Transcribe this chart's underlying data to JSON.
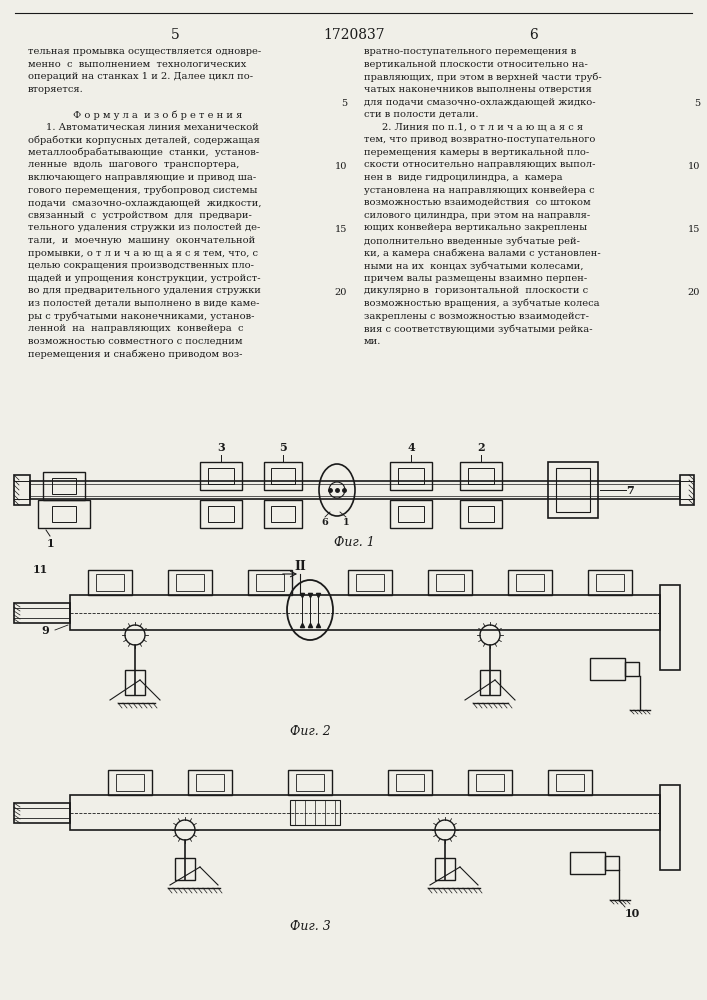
{
  "bg": "#f0efe8",
  "lc": "#1a1a1a",
  "tc": "#1a1a1a",
  "patent_number": "1720837",
  "page_left": "5",
  "page_right": "6",
  "left_col_lines": [
    "тельная промывка осуществляется одновре-",
    "менно  с  выполнением  технологических",
    "операций на станках 1 и 2. Далее цикл по-",
    "вторяется.",
    "",
    "Ф о р м у л а  и з о б р е т е н и я",
    "     1. Автоматическая линия механической",
    "обработки корпусных деталей, содержащая",
    "металлообрабатывающие  станки,  установ-",
    "ленные  вдоль  шагового  транспортера,",
    "включающего направляющие и привод ша-",
    "гового перемещения, трубопровод системы",
    "подачи  смазочно-охлаждающей  жидкости,",
    "связанный  с  устройством  для  предвари-",
    "тельного удаления стружки из полостей де-",
    "тали,  и  моечную  машину  окончательной",
    "промывки, о т л и ч а ю щ а я с я тем, что, с",
    "целью сокращения производственных пло-",
    "щадей и упрощения конструкции, устройст-",
    "во для предварительного удаления стружки",
    "из полостей детали выполнено в виде каме-",
    "ры с трубчатыми наконечниками, установ-",
    "ленной  на  направляющих  конвейера  с",
    "возможностью совместного с последним",
    "перемещения и снабжено приводом воз-"
  ],
  "right_col_lines": [
    "вратно-поступательного перемещения в",
    "вертикальной плоскости относительно на-",
    "правляющих, при этом в верхней части труб-",
    "чатых наконечников выполнены отверстия",
    "для подачи смазочно-охлаждающей жидко-",
    "сти в полости детали.",
    "     2. Линия по п.1, о т л и ч а ю щ а я с я",
    "тем, что привод возвратно-поступательного",
    "перемещения камеры в вертикальной пло-",
    "скости относительно направляющих выпол-",
    "нен в  виде гидроцилиндра, а  камера",
    "установлена на направляющих конвейера с",
    "возможностью взаимодействия  со штоком",
    "силового цилиндра, при этом на направля-",
    "ющих конвейера вертикально закреплены",
    "дополнительно введенные зубчатые рей-",
    "ки, а камера снабжена валами с установлен-",
    "ными на их  концах зубчатыми колесами,",
    "причем валы размещены взаимно перпен-",
    "дикулярно в  горизонтальной  плоскости с",
    "возможностью вращения, а зубчатые колеса",
    "закреплены с возможностью взаимодейст-",
    "вия с соответствующими зубчатыми рейка-",
    "ми."
  ],
  "fig1_label": "Фиг. 1",
  "fig2_label": "Фиг. 2",
  "fig3_label": "Фиг. 3"
}
